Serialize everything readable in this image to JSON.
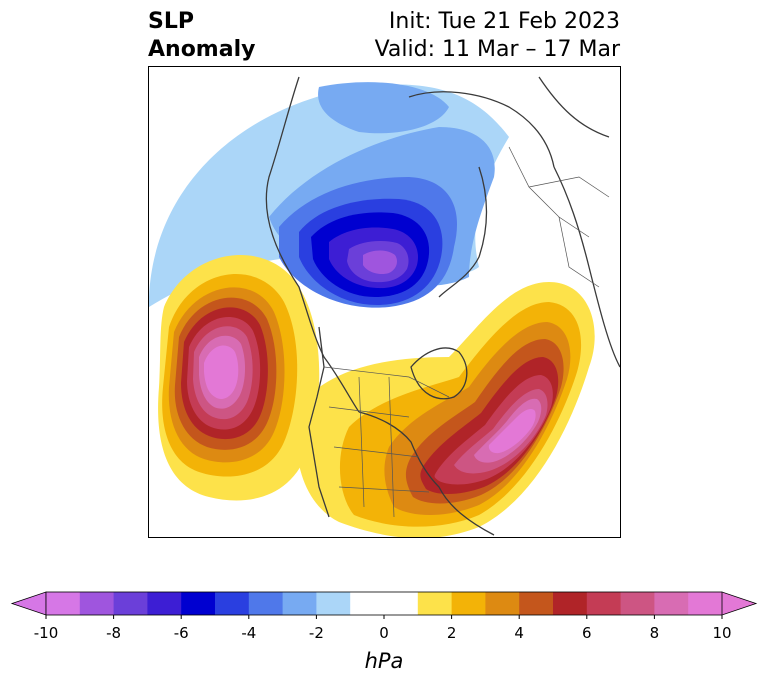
{
  "title": {
    "left_line1": "SLP",
    "left_line2": "Anomaly",
    "right_line1": "Init: Tue 21 Feb 2023",
    "right_line2": "Valid: 11 Mar – 17 Mar"
  },
  "map": {
    "projection": "north-polar-stereographic",
    "variable": "sea-level-pressure-anomaly",
    "features": [
      {
        "name": "negative-anomaly-center",
        "region": "arctic-north-of-greenland",
        "min_hpa": -8
      },
      {
        "name": "positive-anomaly-center",
        "region": "gulf-of-alaska",
        "max_hpa": 10
      },
      {
        "name": "positive-anomaly-center",
        "region": "north-atlantic",
        "max_hpa": 10
      }
    ]
  },
  "colorbar": {
    "unit": "hPa",
    "tick_labels": [
      "-10",
      "-8",
      "-6",
      "-4",
      "-2",
      "0",
      "2",
      "4",
      "6",
      "8",
      "10"
    ],
    "colors": [
      "#d677e6",
      "#9f55de",
      "#6b3fd9",
      "#3d1ed4",
      "#0000d0",
      "#2a3fe0",
      "#4f78ea",
      "#77aaf2",
      "#abd6f8",
      "#ffffff",
      "#ffffff",
      "#fde24a",
      "#f3b307",
      "#dd8a12",
      "#c4561c",
      "#b02428",
      "#c43c55",
      "#cd5583",
      "#d86cb3",
      "#e378d6"
    ]
  }
}
